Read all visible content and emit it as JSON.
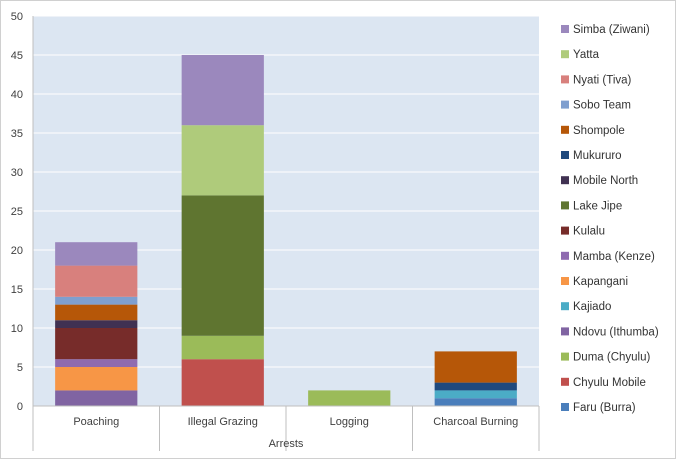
{
  "chart_data": {
    "type": "bar",
    "stacked": true,
    "title": "",
    "xlabel": "Arrests",
    "ylabel": "",
    "ylim": [
      0,
      50
    ],
    "yticks": [
      0,
      5,
      10,
      15,
      20,
      25,
      30,
      35,
      40,
      45,
      50
    ],
    "grid": true,
    "legend_position": "right",
    "plot_background": "#dce6f2",
    "categories": [
      "Poaching",
      "Illegal Grazing",
      "Logging",
      "Charcoal Burning"
    ],
    "series": [
      {
        "name": "Faru (Burra)",
        "color": "#4a7ebb",
        "values": [
          0,
          0,
          0,
          1
        ]
      },
      {
        "name": "Chyulu Mobile",
        "color": "#c0504d",
        "values": [
          0,
          6,
          0,
          0
        ]
      },
      {
        "name": "Duma (Chyulu)",
        "color": "#9bbb59",
        "values": [
          0,
          3,
          2,
          0
        ]
      },
      {
        "name": "Ndovu (Ithumba)",
        "color": "#8064a2",
        "values": [
          2,
          0,
          0,
          0
        ]
      },
      {
        "name": "Kajiado",
        "color": "#4bacc6",
        "values": [
          0,
          0,
          0,
          1
        ]
      },
      {
        "name": "Kapangani",
        "color": "#f79646",
        "values": [
          3,
          0,
          0,
          0
        ]
      },
      {
        "name": "Mamba (Kenze)",
        "color": "#8f6bb0",
        "values": [
          1,
          0,
          0,
          0
        ]
      },
      {
        "name": "Kulalu",
        "color": "#772c2a",
        "values": [
          4,
          0,
          0,
          0
        ]
      },
      {
        "name": "Lake Jipe",
        "color": "#5f7530",
        "values": [
          0,
          18,
          0,
          0
        ]
      },
      {
        "name": "Mobile North",
        "color": "#403152",
        "values": [
          1,
          0,
          0,
          0
        ]
      },
      {
        "name": "Mukururo",
        "color": "#1f497d",
        "values": [
          0,
          0,
          0,
          1
        ]
      },
      {
        "name": "Shompole",
        "color": "#b65708",
        "values": [
          2,
          0,
          0,
          4
        ]
      },
      {
        "name": "Sobo Team",
        "color": "#7f9fcf",
        "values": [
          1,
          0,
          0,
          0
        ]
      },
      {
        "name": "Nyati (Tiva)",
        "color": "#d8807d",
        "values": [
          4,
          0,
          0,
          0
        ]
      },
      {
        "name": "Yatta",
        "color": "#afcb7b",
        "values": [
          0,
          9,
          0,
          0
        ]
      },
      {
        "name": "Simba (Ziwani)",
        "color": "#9b88bd",
        "values": [
          3,
          9,
          0,
          0
        ]
      }
    ]
  }
}
